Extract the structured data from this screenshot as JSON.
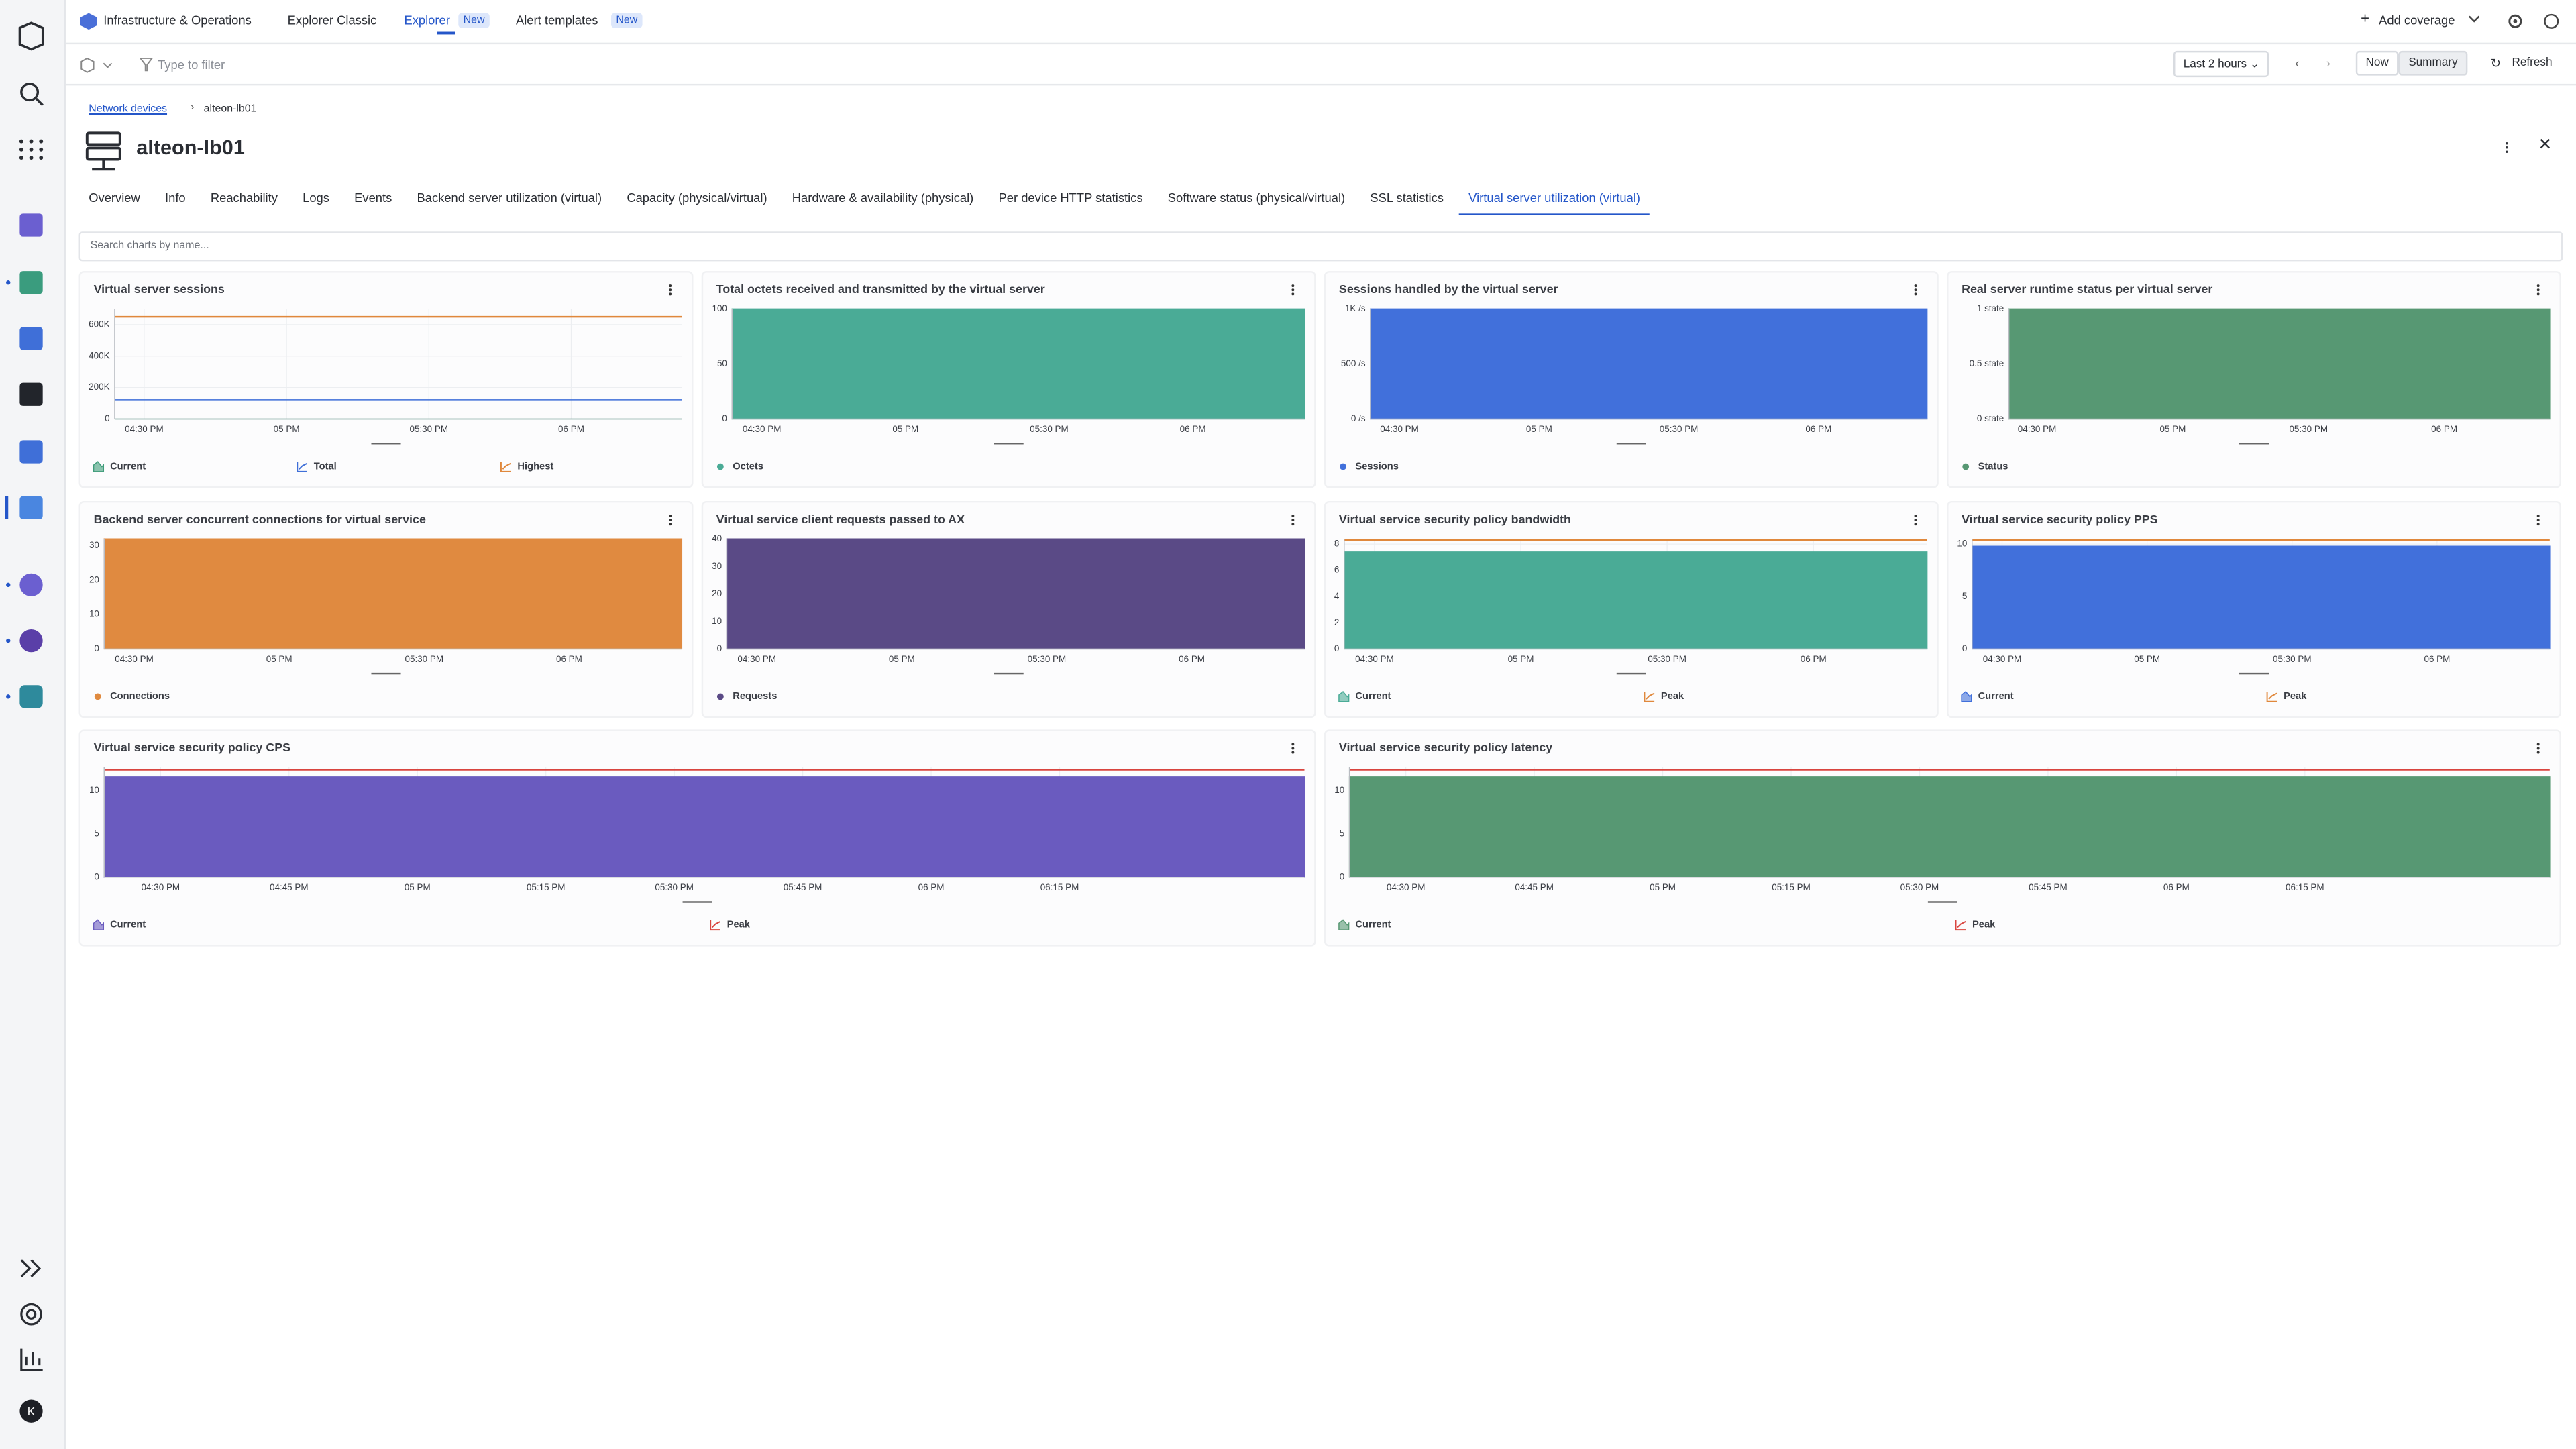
{
  "top_nav": {
    "app": "Infrastructure & Operations",
    "tabs": [
      {
        "label": "Explorer Classic"
      },
      {
        "label": "Explorer",
        "badge": "New"
      },
      {
        "label": "Alert templates",
        "badge": "New"
      }
    ],
    "active_tab": 1,
    "add_coverage": "Add coverage"
  },
  "filter_bar": {
    "placeholder": "Type to filter",
    "timeframe": "Last 2 hours",
    "now": "Now",
    "summary": "Summary",
    "refresh": "Refresh"
  },
  "breadcrumb": {
    "parent": "Network devices",
    "current": "alteon-lb01"
  },
  "entity": {
    "name": "alteon-lb01"
  },
  "tabs": [
    "Overview",
    "Info",
    "Reachability",
    "Logs",
    "Events",
    "Backend server utilization (virtual)",
    "Capacity (physical/virtual)",
    "Hardware & availability (physical)",
    "Per device HTTP statistics",
    "Software status (physical/virtual)",
    "SSL statistics",
    "Virtual server utilization (virtual)"
  ],
  "active_tab": 11,
  "search_placeholder": "Search charts by name...",
  "charts": [
    {
      "type": "line",
      "title": "Virtual server sessions",
      "ylim": [
        0,
        700000
      ],
      "yticks": [
        {
          "value": 0,
          "label": "0"
        },
        {
          "value": 200000,
          "label": "200K"
        },
        {
          "value": 400000,
          "label": "400K"
        },
        {
          "value": 600000,
          "label": "600K"
        }
      ],
      "xticks": [
        "04:30 PM",
        "05 PM",
        "05:30 PM",
        "06 PM"
      ],
      "series": [
        {
          "name": "Current",
          "color": "#3f9c7a",
          "kind": "area",
          "values": [
            0,
            0
          ]
        },
        {
          "name": "Total",
          "color": "#3f6fd8",
          "kind": "line",
          "values": [
            120000,
            120000
          ]
        },
        {
          "name": "Highest",
          "color": "#e0883c",
          "kind": "line",
          "values": [
            650000,
            650000
          ]
        }
      ]
    },
    {
      "type": "area",
      "title": "Total octets received and transmitted by the virtual server",
      "ylim": [
        0,
        100
      ],
      "yticks": [
        0,
        50,
        100
      ],
      "xticks": [
        "04:30 PM",
        "05 PM",
        "05:30 PM",
        "06 PM"
      ],
      "series": [
        {
          "name": "Octets",
          "color": "#4aab96",
          "kind": "area",
          "values": [
            100,
            100
          ]
        }
      ]
    },
    {
      "type": "area",
      "title": "Sessions handled by the virtual server",
      "ylim": [
        0,
        1000
      ],
      "yticks": [
        {
          "value": 0,
          "label": "0 /s"
        },
        {
          "value": 500,
          "label": "500 /s"
        },
        {
          "value": 1000,
          "label": "1K /s"
        }
      ],
      "xticks": [
        "04:30 PM",
        "05 PM",
        "05:30 PM",
        "06 PM"
      ],
      "series": [
        {
          "name": "Sessions",
          "color": "#4170db",
          "kind": "area",
          "values": [
            1000,
            1000
          ]
        }
      ]
    },
    {
      "type": "area",
      "title": "Real server runtime status per virtual server",
      "ylim": [
        0,
        1
      ],
      "yticks": [
        {
          "value": 0,
          "label": "0 state"
        },
        {
          "value": 0.5,
          "label": "0.5 state"
        },
        {
          "value": 1,
          "label": "1 state"
        }
      ],
      "xticks": [
        "04:30 PM",
        "05 PM",
        "05:30 PM",
        "06 PM"
      ],
      "series": [
        {
          "name": "Status",
          "color": "#579873",
          "kind": "area",
          "values": [
            1,
            1
          ]
        }
      ]
    },
    {
      "type": "area",
      "title": "Backend server concurrent connections for virtual service",
      "ylim": [
        0,
        32
      ],
      "yticks": [
        0,
        10,
        20,
        30
      ],
      "xticks": [
        "04:30 PM",
        "05 PM",
        "05:30 PM",
        "06 PM"
      ],
      "series": [
        {
          "name": "Connections",
          "color": "#e08a40",
          "kind": "area",
          "values": [
            32,
            32
          ]
        }
      ]
    },
    {
      "type": "area",
      "title": "Virtual service client requests passed to AX",
      "ylim": [
        0,
        40
      ],
      "yticks": [
        0,
        10,
        20,
        30,
        40
      ],
      "xticks": [
        "04:30 PM",
        "05 PM",
        "05:30 PM",
        "06 PM"
      ],
      "series": [
        {
          "name": "Requests",
          "color": "#5a4a86",
          "kind": "area",
          "values": [
            40,
            40
          ]
        }
      ]
    },
    {
      "type": "area",
      "title": "Virtual service security policy bandwidth",
      "ylim": [
        0,
        8.4
      ],
      "yticks": [
        0,
        2,
        4,
        6,
        8
      ],
      "xticks": [
        "04:30 PM",
        "05 PM",
        "05:30 PM",
        "06 PM"
      ],
      "series": [
        {
          "name": "Current",
          "color": "#4aab96",
          "kind": "area",
          "values": [
            7.4,
            7.4
          ]
        },
        {
          "name": "Peak",
          "color": "#e0883c",
          "kind": "line",
          "values": [
            8.3,
            8.3
          ]
        }
      ]
    },
    {
      "type": "area",
      "title": "Virtual service security policy PPS",
      "ylim": [
        0,
        10.5
      ],
      "yticks": [
        0,
        5,
        10
      ],
      "xticks": [
        "04:30 PM",
        "05 PM",
        "05:30 PM",
        "06 PM"
      ],
      "series": [
        {
          "name": "Current",
          "color": "#4170db",
          "kind": "area",
          "values": [
            9.8,
            9.8
          ]
        },
        {
          "name": "Peak",
          "color": "#e0883c",
          "kind": "line",
          "values": [
            10.4,
            10.4
          ]
        }
      ]
    },
    {
      "type": "area",
      "title": "Virtual service security policy CPS",
      "ylim": [
        0,
        12.7
      ],
      "yticks": [
        0,
        5,
        10
      ],
      "xticks": [
        "04:30 PM",
        "04:45 PM",
        "05 PM",
        "05:15 PM",
        "05:30 PM",
        "05:45 PM",
        "06 PM",
        "06:15 PM"
      ],
      "series": [
        {
          "name": "Current",
          "color": "#6a5bbf",
          "kind": "area",
          "values": [
            11.6,
            11.6
          ]
        },
        {
          "name": "Peak",
          "color": "#d9453f",
          "kind": "line",
          "values": [
            12.4,
            12.4
          ]
        }
      ]
    },
    {
      "type": "area",
      "title": "Virtual service security policy latency",
      "ylim": [
        0,
        12.7
      ],
      "yticks": [
        0,
        5,
        10
      ],
      "xticks": [
        "04:30 PM",
        "04:45 PM",
        "05 PM",
        "05:15 PM",
        "05:30 PM",
        "05:45 PM",
        "06 PM",
        "06:15 PM"
      ],
      "series": [
        {
          "name": "Current",
          "color": "#579873",
          "kind": "area",
          "values": [
            11.6,
            11.6
          ]
        },
        {
          "name": "Peak",
          "color": "#d9453f",
          "kind": "line",
          "values": [
            12.4,
            12.4
          ]
        }
      ]
    }
  ]
}
